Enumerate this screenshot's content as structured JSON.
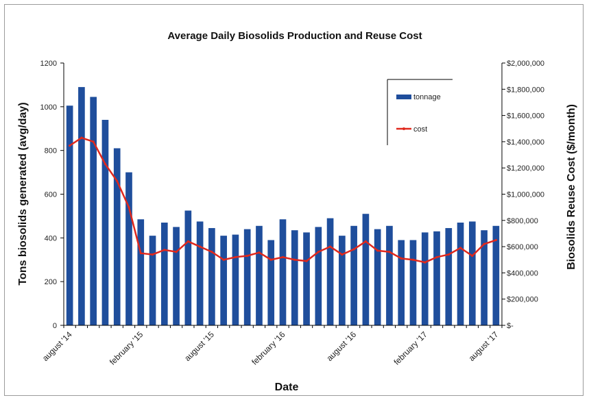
{
  "chart_data": {
    "type": "bar",
    "title": "Average Daily Biosolids Production and Reuse Cost",
    "xlabel": "Date",
    "ylabel": "Tons biosolids generated (avg/day)",
    "y2label": "Biosolids Reuse Cost ($/month)",
    "ylim": [
      0,
      1200
    ],
    "y2lim": [
      0,
      2000000
    ],
    "yticks": [
      "0",
      "200",
      "400",
      "600",
      "800",
      "1000",
      "1200"
    ],
    "y2ticks": [
      "$-",
      "$200,000",
      "$400,000",
      "$600,000",
      "$800,000",
      "$1,000,000",
      "$1,200,000",
      "$1,400,000",
      "$1,600,000",
      "$1,800,000",
      "$2,000,000"
    ],
    "xtick_labels": [
      {
        "label": "august '14",
        "index": 0
      },
      {
        "label": "february '15",
        "index": 6
      },
      {
        "label": "august '15",
        "index": 12
      },
      {
        "label": "february '16",
        "index": 18
      },
      {
        "label": "august '16",
        "index": 24
      },
      {
        "label": "february '17",
        "index": 30
      },
      {
        "label": "august '17",
        "index": 36
      }
    ],
    "legend_position": "top-right",
    "series": [
      {
        "name": "tonnage",
        "type": "bar",
        "axis": "left",
        "color": "#1f4e9c",
        "values": [
          1005,
          1090,
          1045,
          940,
          810,
          700,
          485,
          410,
          470,
          450,
          525,
          475,
          445,
          410,
          415,
          440,
          455,
          390,
          485,
          435,
          425,
          450,
          490,
          410,
          455,
          510,
          440,
          455,
          390,
          390,
          425,
          430,
          445,
          470,
          475,
          435,
          455
        ]
      },
      {
        "name": "cost",
        "type": "line",
        "axis": "right",
        "color": "#e0281c",
        "values": [
          1370000,
          1430000,
          1400000,
          1230000,
          1100000,
          900000,
          550000,
          540000,
          575000,
          560000,
          640000,
          600000,
          560000,
          500000,
          520000,
          530000,
          555000,
          500000,
          520000,
          500000,
          490000,
          560000,
          600000,
          540000,
          580000,
          640000,
          570000,
          560000,
          510000,
          500000,
          480000,
          520000,
          540000,
          590000,
          530000,
          620000,
          650000
        ]
      }
    ]
  }
}
